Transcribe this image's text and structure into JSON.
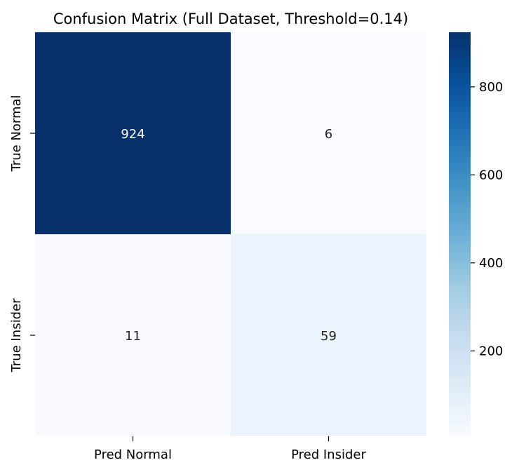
{
  "chart_data": {
    "type": "heatmap",
    "title": "Confusion Matrix (Full Dataset, Threshold=0.14)",
    "x_categories": [
      "Pred Normal",
      "Pred Insider"
    ],
    "y_categories": [
      "True Normal",
      "True Insider"
    ],
    "values": [
      [
        924,
        6
      ],
      [
        11,
        59
      ]
    ],
    "colormap": "Blues",
    "colorbar": {
      "ticks": [
        200,
        400,
        600,
        800
      ],
      "range": [
        6,
        924
      ]
    },
    "colorscale_hex": [
      "#f7fbff",
      "#deebf7",
      "#c6dbef",
      "#9ecae1",
      "#6baed6",
      "#4292c6",
      "#2171b5",
      "#08519c",
      "#08306b"
    ]
  }
}
